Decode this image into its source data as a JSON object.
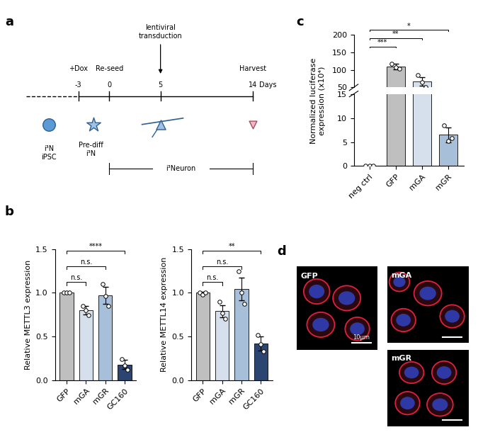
{
  "panel_labels": [
    "a",
    "b",
    "c",
    "d"
  ],
  "timeline": {
    "xticks": [
      -3,
      0,
      5,
      14
    ],
    "xlabel": "Days",
    "events": [
      {
        "day": -3,
        "label": "+Dox"
      },
      {
        "day": 0,
        "label": "Re-seed"
      },
      {
        "day": 5,
        "label": "lentiviral\ntransduction"
      },
      {
        "day": 14,
        "label": "Harvest"
      }
    ],
    "stages": [
      {
        "label": "i³N\niPSC"
      },
      {
        "label": "Pre-diff\ni³N",
        "from": -3,
        "to": 0
      },
      {
        "label": "i³Neuron",
        "from": 0,
        "to": 14
      }
    ]
  },
  "chart_data": [
    {
      "type": "bar",
      "categories": [
        "GFP",
        "mGA",
        "mGR",
        "GC160"
      ],
      "values": [
        1.0,
        0.8,
        0.97,
        0.18
      ],
      "errors": [
        0.0,
        0.05,
        0.1,
        0.05
      ],
      "points": [
        [
          1.0,
          1.0,
          1.0
        ],
        [
          0.85,
          0.8,
          0.74
        ],
        [
          1.1,
          0.96,
          0.85
        ],
        [
          0.24,
          0.17,
          0.12
        ]
      ],
      "colors": [
        "#bfbfbf",
        "#d6e0ec",
        "#a8bfd9",
        "#2b4570"
      ],
      "ylabel": "Relative METTL3 expression",
      "ylim": [
        0,
        1.5
      ],
      "yticks": [
        {
          "value": 0,
          "label": "0.0"
        },
        0.5,
        {
          "value": 1,
          "label": "1.0"
        },
        1.5
      ],
      "annotations": [
        {
          "from": "GFP",
          "to": "mGA",
          "text": "n.s."
        },
        {
          "from": "GFP",
          "to": "mGR",
          "text": "n.s."
        },
        {
          "from": "GFP",
          "to": "GC160",
          "text": "****"
        }
      ]
    },
    {
      "type": "bar",
      "categories": [
        "GFP",
        "mGA",
        "mGR",
        "GC160"
      ],
      "values": [
        1.0,
        0.79,
        1.04,
        0.42
      ],
      "errors": [
        0.01,
        0.07,
        0.13,
        0.08
      ],
      "points": [
        [
          1.0,
          0.98,
          1.0
        ],
        [
          0.9,
          0.77,
          0.7
        ],
        [
          1.25,
          1.0,
          0.87
        ],
        [
          0.52,
          0.41,
          0.33
        ]
      ],
      "colors": [
        "#bfbfbf",
        "#d6e0ec",
        "#a8bfd9",
        "#2b4570"
      ],
      "ylabel": "Relative METTL14 expression",
      "ylim": [
        0,
        1.5
      ],
      "yticks": [
        {
          "value": 0,
          "label": "0.0"
        },
        0.5,
        {
          "value": 1,
          "label": "1.0"
        },
        1.5
      ],
      "annotations": [
        {
          "from": "GFP",
          "to": "mGA",
          "text": "n.s."
        },
        {
          "from": "GFP",
          "to": "mGR",
          "text": "n.s."
        },
        {
          "from": "GFP",
          "to": "GC160",
          "text": "**"
        }
      ]
    },
    {
      "type": "bar",
      "categories": [
        "neg ctrl",
        "GFP",
        "mGA",
        "mGR"
      ],
      "values": [
        0,
        110,
        67,
        6.5
      ],
      "errors": [
        0,
        8,
        12,
        1.5
      ],
      "points": [
        [
          0,
          0,
          0
        ],
        [
          118,
          108,
          104
        ],
        [
          85,
          66,
          50
        ],
        [
          8.5,
          5.2,
          5.8
        ]
      ],
      "colors": [
        "#bfbfbf",
        "#bfbfbf",
        "#d6e0ec",
        "#a8bfd9"
      ],
      "ylabel": "Normalized luciferase\nexpression (x10⁴)",
      "ylim": [
        0,
        200
      ],
      "yticks": [
        0,
        5,
        10,
        15,
        50,
        100,
        150,
        200
      ],
      "axis_break": [
        15,
        50
      ],
      "annotations": [
        {
          "from": "neg ctrl",
          "to": "GFP",
          "text": "***"
        },
        {
          "from": "neg ctrl",
          "to": "mGA",
          "text": "**"
        },
        {
          "from": "neg ctrl",
          "to": "mGR",
          "text": "*"
        }
      ]
    }
  ],
  "images": {
    "panels": [
      "GFP",
      "mGA",
      "mGR"
    ],
    "scale_bar": "10μm"
  }
}
